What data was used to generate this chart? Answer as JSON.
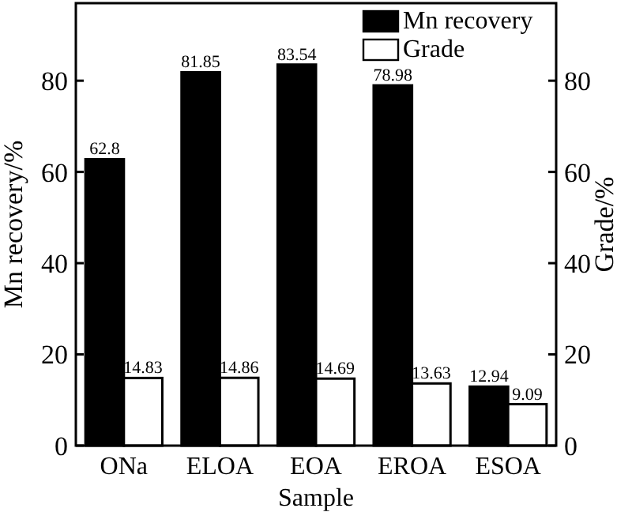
{
  "chart_data": {
    "type": "bar",
    "xlabel": "Sample",
    "ylabel": "Mn recovery/%",
    "y2label": "Grade/%",
    "categories": [
      "ONa",
      "ELOA",
      "EOA",
      "EROA",
      "ESOA"
    ],
    "series": [
      {
        "name": "Mn recovery",
        "color": "#000000",
        "values": [
          62.8,
          81.85,
          83.54,
          78.98,
          12.94
        ]
      },
      {
        "name": "Grade",
        "color": "#ffffff",
        "values": [
          14.83,
          14.86,
          14.69,
          13.63,
          9.09
        ]
      }
    ],
    "ylim": [
      0,
      97
    ],
    "yticks": [
      0,
      20,
      40,
      60,
      80
    ],
    "y2lim": [
      0,
      97
    ],
    "y2ticks": [
      0,
      20,
      40,
      60,
      80
    ],
    "data_labels": true,
    "legend": "top right",
    "grid": false
  }
}
